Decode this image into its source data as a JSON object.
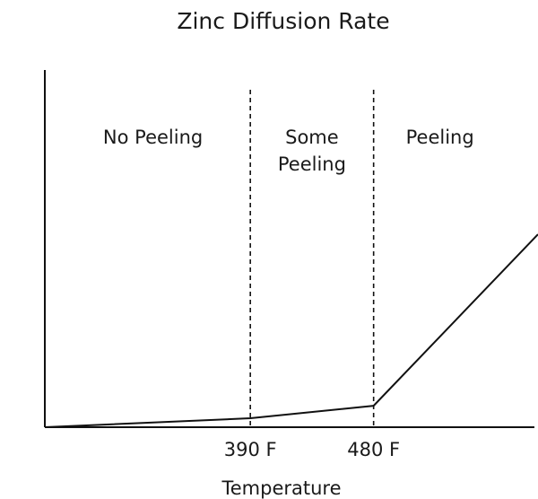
{
  "chart_data": {
    "type": "line",
    "title": "Zinc Diffusion Rate",
    "xlabel": "Temperature",
    "ylabel": "",
    "x_ticks": [
      {
        "value": 390,
        "label": "390 F"
      },
      {
        "value": 480,
        "label": "480 F"
      }
    ],
    "xlim": [
      240,
      600
    ],
    "ylim": [
      0,
      100
    ],
    "series": [
      {
        "x": [
          240,
          390,
          480,
          600
        ],
        "y": [
          0,
          2.5,
          6,
          54
        ]
      }
    ],
    "threshold_lines": [
      390,
      480
    ],
    "regions": [
      {
        "lines": [
          "No Peeling"
        ],
        "x_start": 240,
        "x_end": 390
      },
      {
        "lines": [
          "Some",
          "Peeling"
        ],
        "x_start": 390,
        "x_end": 480
      },
      {
        "lines": [
          "Peeling"
        ],
        "x_start": 480,
        "x_end": 600
      }
    ],
    "grid": false,
    "legend": "none",
    "colors": {
      "line": "#111111",
      "axis": "#111111",
      "text": "#1a1a1a"
    }
  }
}
